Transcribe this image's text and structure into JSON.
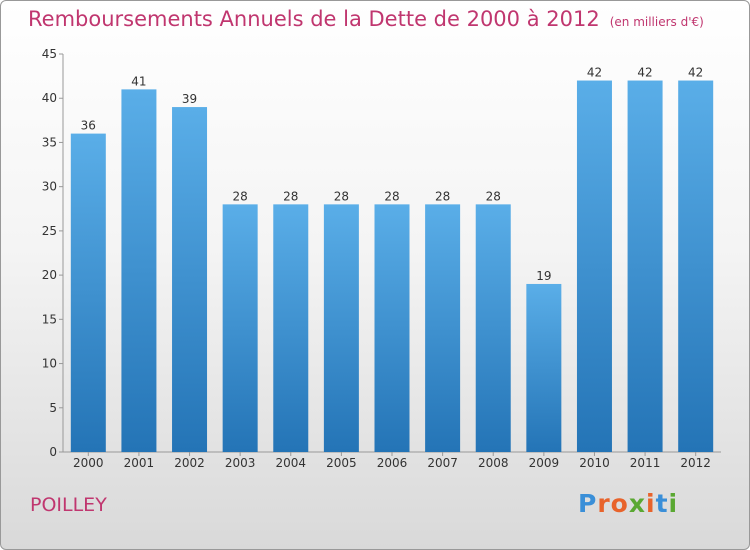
{
  "title": "Remboursements Annuels de la Dette de 2000 à 2012",
  "title_unit": "(en milliers d'€)",
  "commune": "POILLEY",
  "logo": {
    "letters": [
      "P",
      "r",
      "o",
      "x",
      "i",
      "t",
      "i"
    ],
    "colors": [
      "#3a8fd8",
      "#e8632b",
      "#e8632b",
      "#5aa832",
      "#e8632b",
      "#3a8fd8",
      "#5aa832"
    ]
  },
  "colors": {
    "accent": "#c0366f",
    "bar_top": "#5aaee8",
    "bar_bottom": "#2474b6"
  },
  "chart_data": {
    "type": "bar",
    "categories": [
      "2000",
      "2001",
      "2002",
      "2003",
      "2004",
      "2005",
      "2006",
      "2007",
      "2008",
      "2009",
      "2010",
      "2011",
      "2012"
    ],
    "values": [
      36,
      41,
      39,
      28,
      28,
      28,
      28,
      28,
      28,
      19,
      42,
      42,
      42
    ],
    "title": "Remboursements Annuels de la Dette de 2000 à 2012",
    "ylim": [
      0,
      45
    ],
    "yticks": [
      0,
      5,
      10,
      15,
      20,
      25,
      30,
      35,
      40,
      45
    ],
    "grid": false
  }
}
